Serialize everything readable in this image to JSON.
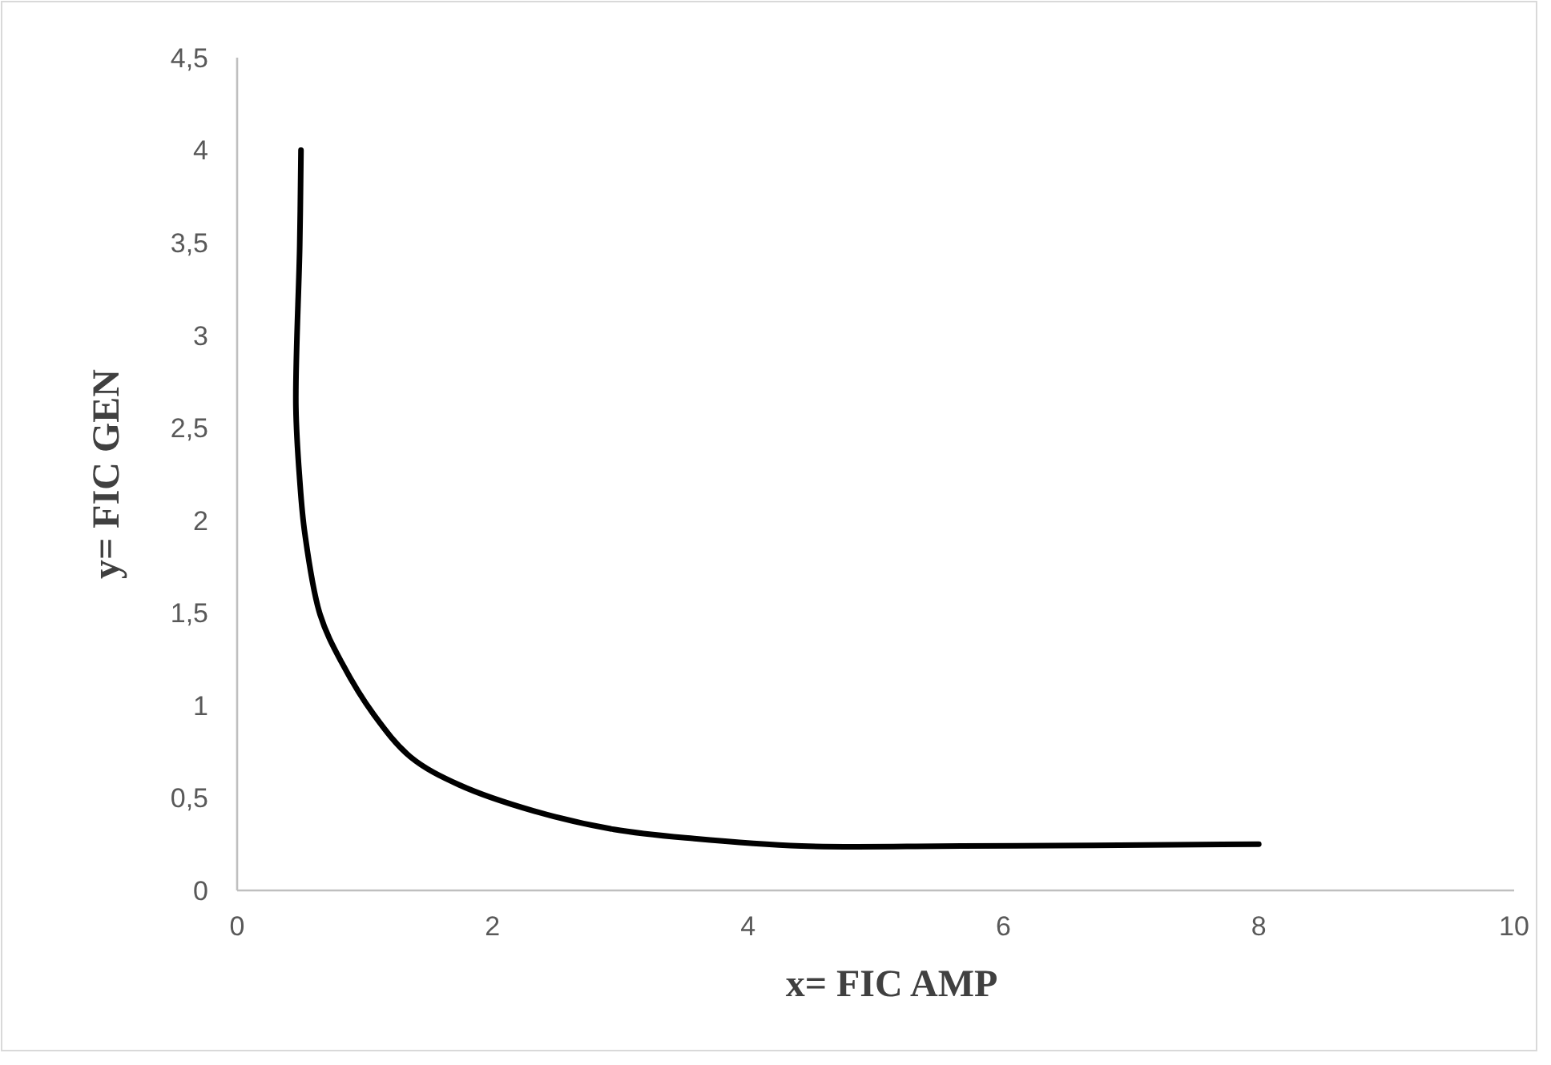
{
  "chart_data": {
    "type": "line",
    "xlabel": "x= FIC AMP",
    "ylabel": "y= FIC GEN",
    "xlim": [
      0,
      10
    ],
    "xticks": [
      0,
      2,
      4,
      6,
      8,
      10
    ],
    "ylim": [
      0,
      4.5
    ],
    "yticks": [
      0,
      {
        "value": 0.5,
        "label": "0,5"
      },
      1,
      {
        "value": 1.5,
        "label": "1,5"
      },
      2,
      {
        "value": 2.5,
        "label": "2,5"
      },
      3,
      {
        "value": 3.5,
        "label": "3,5"
      },
      4,
      {
        "value": 4.5,
        "label": "4,5"
      }
    ],
    "grid": false,
    "marker": "none",
    "line_style": "solid",
    "series": [
      {
        "color": "#000000",
        "x": [
          0.5,
          0.49,
          0.46,
          0.49,
          0.53,
          0.65,
          0.82,
          1.07,
          1.36,
          1.74,
          2.32,
          2.95,
          3.58,
          4.42,
          5.67,
          8
        ],
        "values": [
          4,
          3.48,
          2.62,
          2.22,
          1.93,
          1.49,
          1.23,
          0.95,
          0.72,
          0.57,
          0.43,
          0.33,
          0.28,
          0.24,
          0.24,
          0.25
        ]
      }
    ]
  }
}
